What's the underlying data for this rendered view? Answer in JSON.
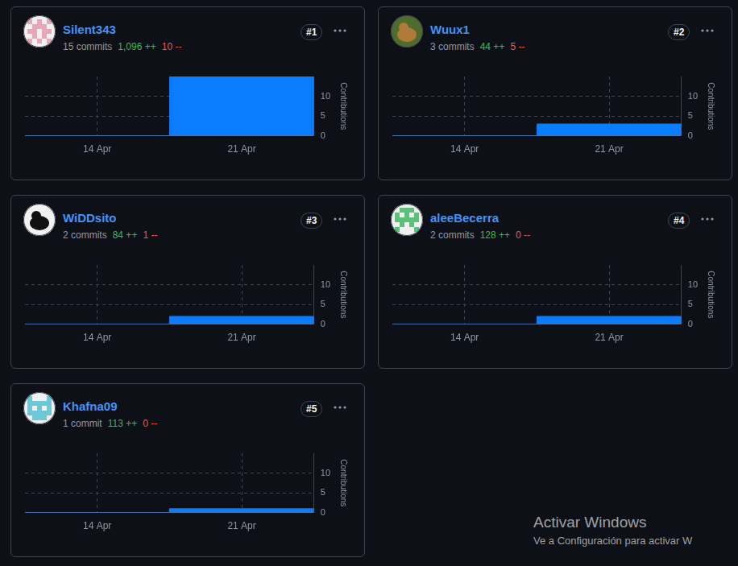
{
  "chart_data": [
    {
      "type": "bar",
      "title": "Silent343",
      "rank": "#1",
      "commits": "15 commits",
      "additions": "1,096 ++",
      "deletions": "10 --",
      "categories": [
        "14 Apr",
        "21 Apr"
      ],
      "values": [
        0,
        15
      ],
      "color": "#0a7cff",
      "ylim": [
        0,
        15
      ],
      "yticks": [
        0,
        5,
        10
      ],
      "y_label": "Contributions",
      "grid": true
    },
    {
      "type": "bar",
      "title": "Wuux1",
      "rank": "#2",
      "commits": "3 commits",
      "additions": "44 ++",
      "deletions": "5 --",
      "categories": [
        "14 Apr",
        "21 Apr"
      ],
      "values": [
        0,
        3
      ],
      "color": "#0a7cff",
      "ylim": [
        0,
        15
      ],
      "yticks": [
        0,
        5,
        10
      ],
      "y_label": "Contributions",
      "grid": true
    },
    {
      "type": "bar",
      "title": "WiDDsito",
      "rank": "#3",
      "commits": "2 commits",
      "additions": "84 ++",
      "deletions": "1 --",
      "categories": [
        "14 Apr",
        "21 Apr"
      ],
      "values": [
        0,
        2
      ],
      "color": "#0a7cff",
      "ylim": [
        0,
        15
      ],
      "yticks": [
        0,
        5,
        10
      ],
      "y_label": "Contributions",
      "grid": true
    },
    {
      "type": "bar",
      "title": "aleeBecerra",
      "rank": "#4",
      "commits": "2 commits",
      "additions": "128 ++",
      "deletions": "0 --",
      "categories": [
        "14 Apr",
        "21 Apr"
      ],
      "values": [
        0,
        2
      ],
      "color": "#0a7cff",
      "ylim": [
        0,
        15
      ],
      "yticks": [
        0,
        5,
        10
      ],
      "y_label": "Contributions",
      "grid": true
    },
    {
      "type": "bar",
      "title": "Khafna09",
      "rank": "#5",
      "commits": "1 commit",
      "additions": "113 ++",
      "deletions": "0 --",
      "categories": [
        "14 Apr",
        "21 Apr"
      ],
      "values": [
        0,
        1
      ],
      "color": "#0a7cff",
      "ylim": [
        0,
        15
      ],
      "yticks": [
        0,
        5,
        10
      ],
      "y_label": "Contributions",
      "grid": true
    }
  ],
  "overlay": {
    "title": "Activar Windows",
    "text": "Ve a Configuración para activar W"
  }
}
